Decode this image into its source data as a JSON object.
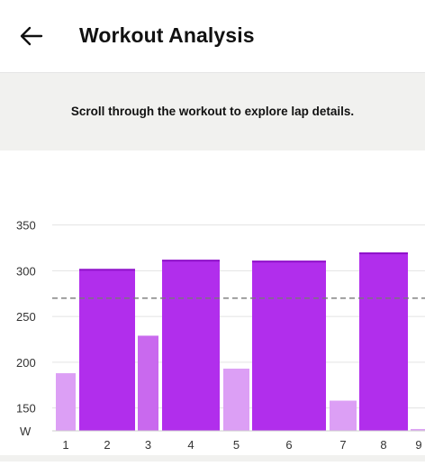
{
  "header": {
    "back_icon": "arrow-left-icon",
    "title": "Workout Analysis"
  },
  "banner": {
    "text": "Scroll through the workout to explore lap details."
  },
  "colors": {
    "work_lap": "#b12eec",
    "recovery_lap": "#dc9ff5",
    "mid_lap": "#c969ee",
    "average_line": "#777777",
    "gridline": "#e3e3e3"
  },
  "chart_data": {
    "type": "bar",
    "ylabel": "W",
    "ylim": [
      125,
      355
    ],
    "yticks": [
      150,
      200,
      250,
      300,
      350
    ],
    "average_line": 270,
    "grid": true,
    "laps": [
      {
        "label": "1",
        "value": 188,
        "kind": "recovery"
      },
      {
        "label": "2",
        "value": 302,
        "kind": "work"
      },
      {
        "label": "3",
        "value": 229,
        "kind": "mid"
      },
      {
        "label": "4",
        "value": 312,
        "kind": "work"
      },
      {
        "label": "5",
        "value": 193,
        "kind": "recovery"
      },
      {
        "label": "6",
        "value": 311,
        "kind": "work"
      },
      {
        "label": "7",
        "value": 158,
        "kind": "recovery"
      },
      {
        "label": "8",
        "value": 320,
        "kind": "work"
      },
      {
        "label": "9",
        "value": 127,
        "kind": "recovery"
      }
    ]
  }
}
